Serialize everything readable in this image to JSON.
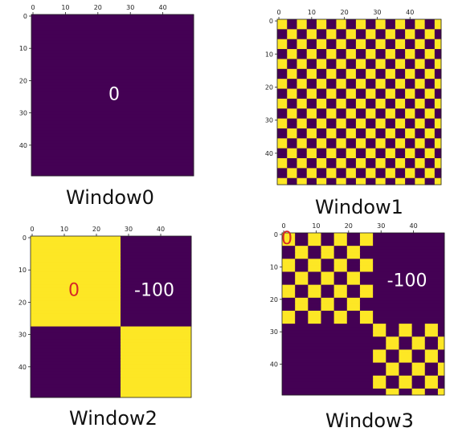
{
  "colors": {
    "low": "#440154",
    "high": "#fde725",
    "overlay_text": "#ffffff",
    "overlay_text_red": "#d62728",
    "axis": "#222222",
    "caption": "#111111"
  },
  "chart_data": [
    {
      "type": "heatmap",
      "title": "Window0",
      "xlim": [
        0,
        49
      ],
      "ylim": [
        0,
        49
      ],
      "xticks": [
        0,
        10,
        20,
        30,
        40
      ],
      "yticks": [
        0,
        10,
        20,
        30,
        40
      ],
      "pattern": "uniform",
      "cell_value": "low",
      "annotations": [
        {
          "text": "0",
          "color": "white",
          "at": [
            25,
            24
          ]
        }
      ]
    },
    {
      "type": "heatmap",
      "title": "Window1",
      "xlim": [
        0,
        49
      ],
      "ylim": [
        0,
        49
      ],
      "xticks": [
        0,
        10,
        20,
        30,
        40
      ],
      "yticks": [
        0,
        10,
        20,
        30,
        40
      ],
      "pattern": "checkerboard",
      "block_size": 3,
      "annotations": []
    },
    {
      "type": "heatmap",
      "title": "Window2",
      "xlim": [
        0,
        49
      ],
      "ylim": [
        0,
        49
      ],
      "xticks": [
        0,
        10,
        20,
        30,
        40
      ],
      "yticks": [
        0,
        10,
        20,
        30,
        40
      ],
      "pattern": "quadrants",
      "split": 28,
      "quadrants": {
        "top_left": "high",
        "top_right": "low",
        "bottom_left": "low",
        "bottom_right": "high"
      },
      "annotations": [
        {
          "text": "0",
          "color": "red",
          "at": [
            13,
            16
          ]
        },
        {
          "text": "-100",
          "color": "white",
          "at": [
            38,
            16
          ]
        }
      ]
    },
    {
      "type": "heatmap",
      "title": "Window3",
      "xlim": [
        0,
        49
      ],
      "ylim": [
        0,
        49
      ],
      "xticks": [
        0,
        10,
        20,
        30,
        40
      ],
      "yticks": [
        0,
        10,
        20,
        30,
        40
      ],
      "pattern": "block-checkerboard",
      "split": 28,
      "block_size": 4,
      "quadrants": {
        "top_left": "checker",
        "top_right": "low",
        "bottom_left": "low",
        "bottom_right": "checker"
      },
      "annotations": [
        {
          "text": "0",
          "color": "red",
          "at": [
            1,
            1
          ]
        },
        {
          "text": "-100",
          "color": "white",
          "at": [
            38,
            14
          ]
        }
      ]
    }
  ]
}
